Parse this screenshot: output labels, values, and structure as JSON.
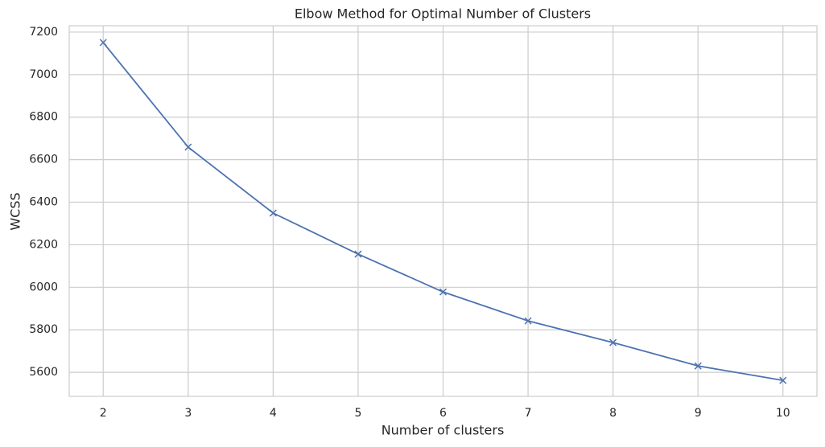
{
  "chart_data": {
    "type": "line",
    "title": "Elbow Method for Optimal Number of Clusters",
    "x_label": "Number of clusters",
    "y_label": "WCSS",
    "x": [
      2,
      3,
      4,
      5,
      6,
      7,
      8,
      9,
      10
    ],
    "series": [
      {
        "color": "#4c72b0",
        "marker": "x",
        "values": [
          7151,
          6659,
          6349,
          6156,
          5978,
          5842,
          5740,
          5630,
          5562
        ]
      }
    ],
    "xlim": [
      1.6,
      10.4
    ],
    "xticks": [
      2,
      3,
      4,
      5,
      6,
      7,
      8,
      9,
      10
    ],
    "ylim": [
      5487,
      7230
    ],
    "yticks": [
      5600,
      5800,
      6000,
      6200,
      6400,
      6600,
      6800,
      7000,
      7200
    ],
    "grid": true
  }
}
